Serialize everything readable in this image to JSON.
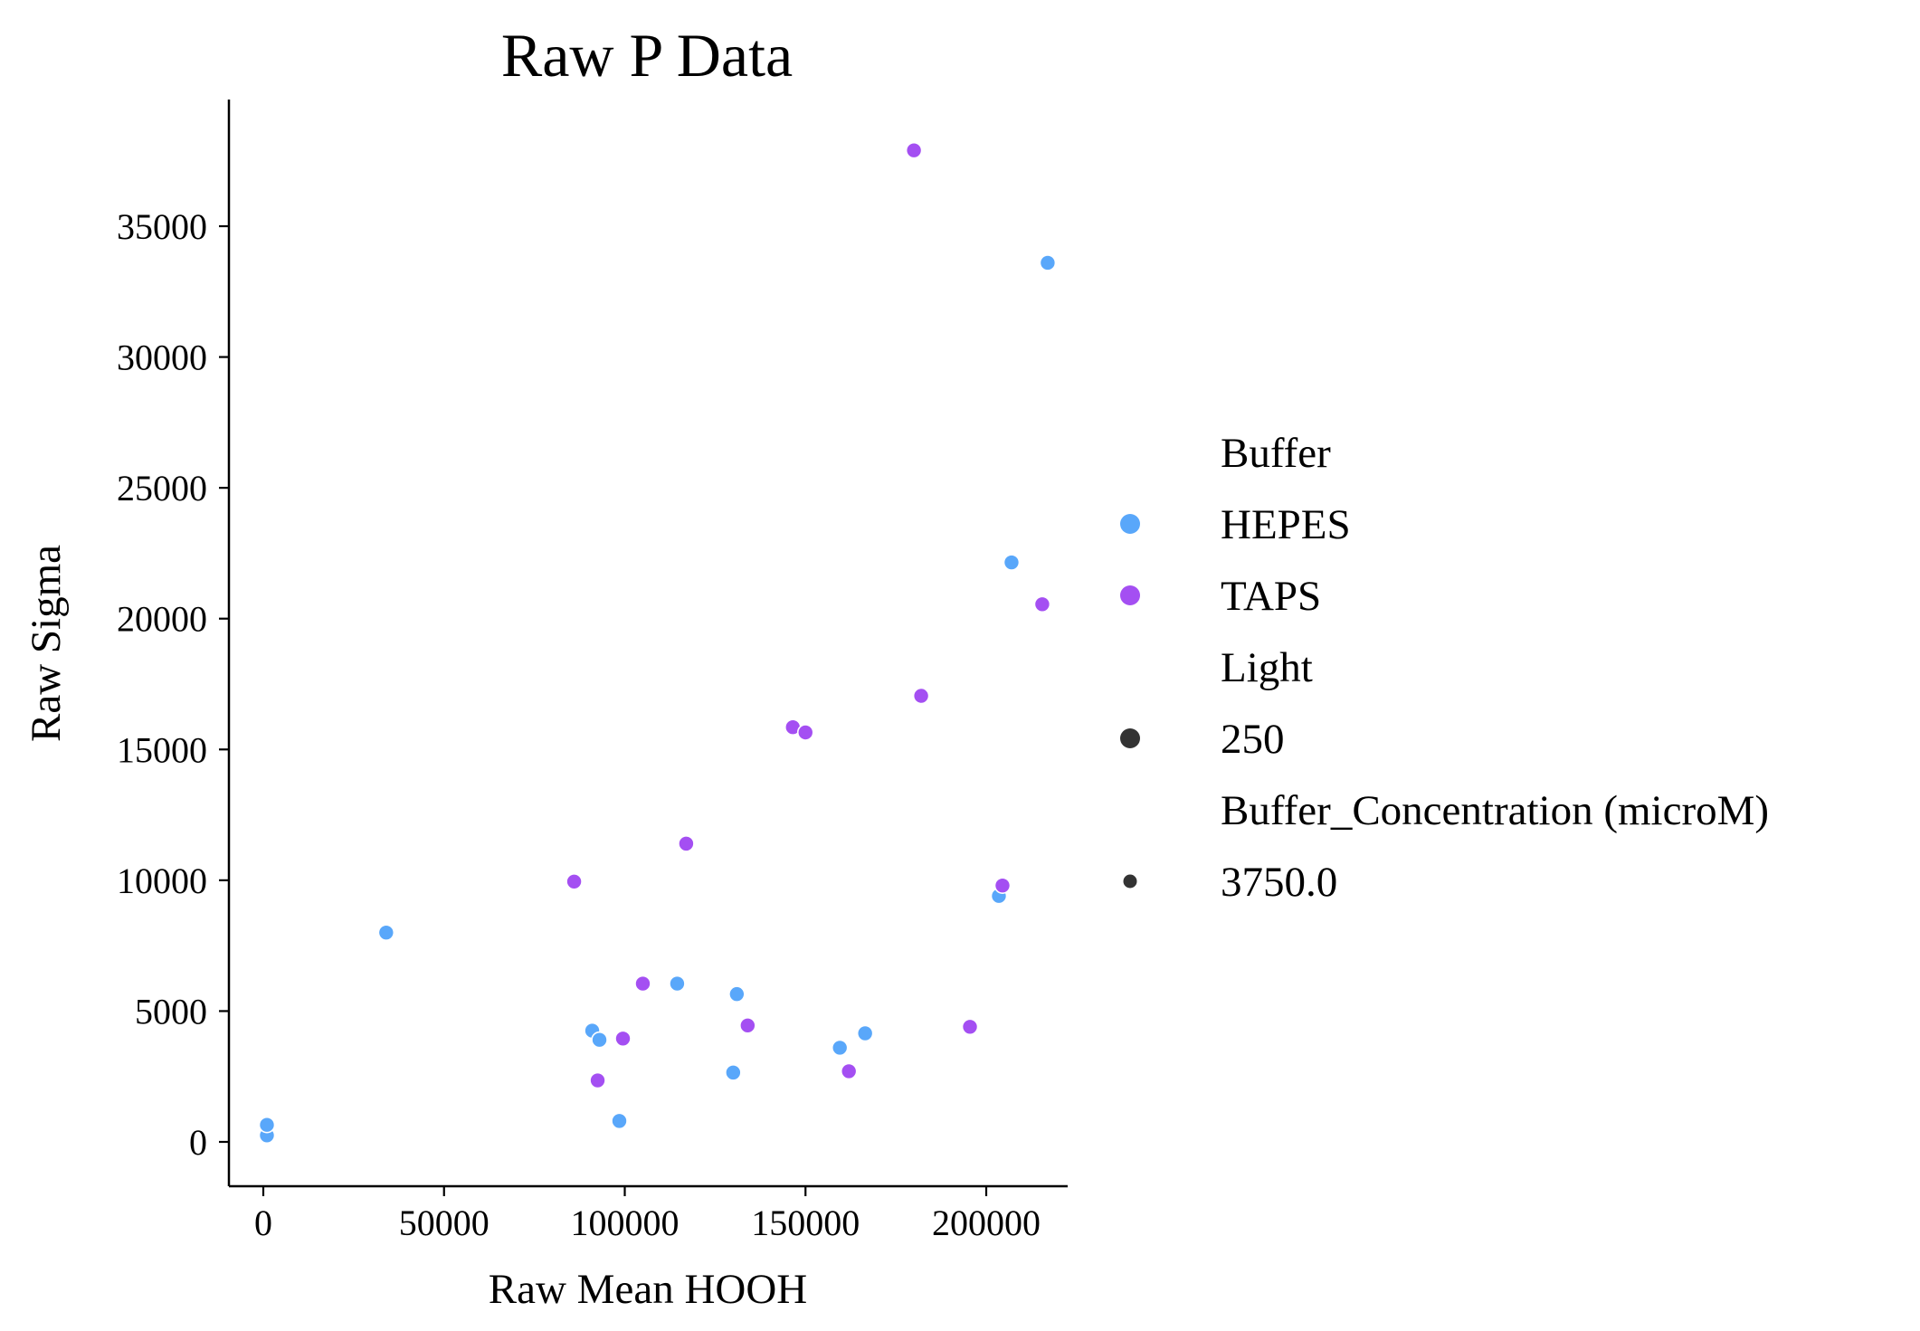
{
  "chart_data": {
    "type": "scatter",
    "title": "Raw P Data",
    "xlabel": "Raw Mean HOOH",
    "ylabel": "Raw Sigma",
    "xlim": [
      -10000,
      228000
    ],
    "ylim": [
      -1700,
      39600
    ],
    "xticks": [
      0,
      50000,
      100000,
      150000,
      200000
    ],
    "yticks": [
      0,
      5000,
      10000,
      15000,
      20000,
      25000,
      30000,
      35000
    ],
    "grid": false,
    "legend_position": "right",
    "legend": [
      {
        "title": "Buffer",
        "entries": [
          {
            "label": "HEPES",
            "color": "#59a7fa",
            "marker": "circle-large"
          },
          {
            "label": "TAPS",
            "color": "#a44ff2",
            "marker": "circle-large"
          }
        ]
      },
      {
        "title": "Light",
        "entries": [
          {
            "label": "250",
            "color": "#333333",
            "marker": "circle-large"
          }
        ]
      },
      {
        "title": "Buffer_Concentration (microM)",
        "entries": [
          {
            "label": "3750.0",
            "color": "#333333",
            "marker": "circle-small"
          }
        ]
      }
    ],
    "series": [
      {
        "name": "HEPES",
        "color": "#59a7fa",
        "x": [
          1000,
          1000,
          34000,
          91000,
          93000,
          98500,
          114500,
          130000,
          131000,
          159500,
          166500,
          203500,
          207000,
          217000
        ],
        "y": [
          250,
          650,
          8000,
          4250,
          3900,
          800,
          6050,
          2650,
          5650,
          3600,
          4150,
          9400,
          22150,
          33600
        ]
      },
      {
        "name": "TAPS",
        "color": "#a44ff2",
        "x": [
          86000,
          92500,
          99500,
          105000,
          117000,
          134000,
          146500,
          150000,
          162000,
          180000,
          182000,
          195500,
          204500,
          215500
        ],
        "y": [
          9950,
          2350,
          3950,
          6050,
          11400,
          4450,
          15850,
          15650,
          2700,
          37900,
          17050,
          4400,
          9800,
          20550
        ]
      }
    ]
  }
}
